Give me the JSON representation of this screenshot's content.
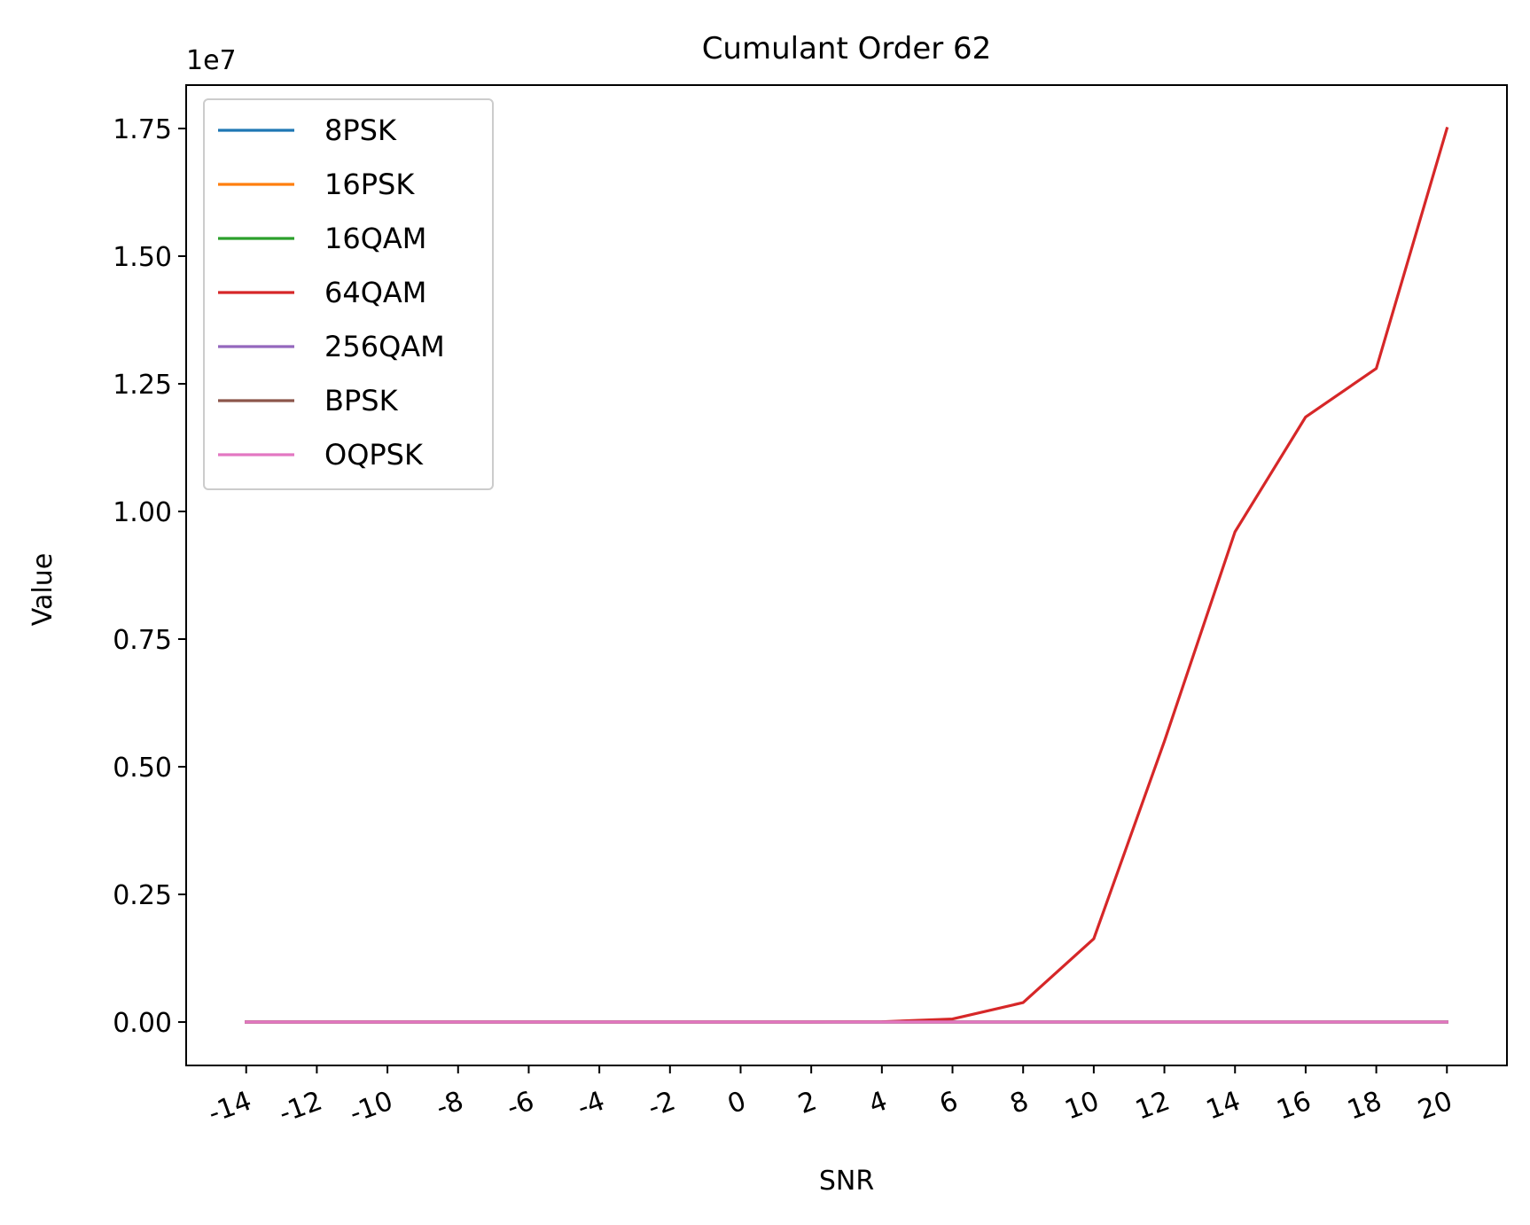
{
  "chart_data": {
    "type": "line",
    "title": "Cumulant Order 62",
    "xlabel": "SNR",
    "ylabel": "Value",
    "y_offset_text": "1e7",
    "x": [
      -14,
      -12,
      -10,
      -8,
      -6,
      -4,
      -2,
      0,
      2,
      4,
      6,
      8,
      10,
      12,
      14,
      16,
      18,
      20
    ],
    "x_tick_labels": [
      "-14",
      "-12",
      "-10",
      "-8",
      "-6",
      "-4",
      "-2",
      "0",
      "2",
      "4",
      "6",
      "8",
      "10",
      "12",
      "14",
      "16",
      "18",
      "20"
    ],
    "y_ticks": [
      0,
      2500000,
      5000000,
      7500000,
      10000000,
      12500000,
      15000000,
      17500000
    ],
    "y_tick_labels": [
      "0.00",
      "0.25",
      "0.50",
      "0.75",
      "1.00",
      "1.25",
      "1.50",
      "1.75"
    ],
    "xlim": [
      -15.7,
      21.7
    ],
    "ylim": [
      -850000,
      18350000
    ],
    "grid": false,
    "legend_position": "upper-left",
    "series": [
      {
        "name": "8PSK",
        "color": "#1f77b4",
        "values": [
          0,
          0,
          0,
          0,
          0,
          0,
          0,
          0,
          0,
          0,
          0,
          0,
          0,
          0,
          0,
          0,
          0,
          0
        ]
      },
      {
        "name": "16PSK",
        "color": "#ff7f0e",
        "values": [
          0,
          0,
          0,
          0,
          0,
          0,
          0,
          0,
          0,
          0,
          0,
          0,
          0,
          0,
          0,
          0,
          0,
          0
        ]
      },
      {
        "name": "16QAM",
        "color": "#2ca02c",
        "values": [
          0,
          0,
          0,
          0,
          0,
          0,
          0,
          0,
          0,
          0,
          0,
          0,
          0,
          0,
          0,
          0,
          0,
          0
        ]
      },
      {
        "name": "64QAM",
        "color": "#d62728",
        "values": [
          0,
          0,
          0,
          0,
          0,
          0,
          0,
          0,
          0,
          5000,
          60000,
          380000,
          1630000,
          5500000,
          9600000,
          11850000,
          12800000,
          17500000
        ]
      },
      {
        "name": "256QAM",
        "color": "#9467bd",
        "values": [
          0,
          0,
          0,
          0,
          0,
          0,
          0,
          0,
          0,
          0,
          0,
          0,
          0,
          0,
          0,
          0,
          0,
          0
        ]
      },
      {
        "name": "BPSK",
        "color": "#8c564b",
        "values": [
          0,
          0,
          0,
          0,
          0,
          0,
          0,
          0,
          0,
          0,
          0,
          0,
          0,
          0,
          0,
          0,
          0,
          0
        ]
      },
      {
        "name": "OQPSK",
        "color": "#e377c2",
        "values": [
          0,
          0,
          0,
          0,
          0,
          0,
          0,
          0,
          0,
          0,
          0,
          0,
          0,
          0,
          0,
          0,
          0,
          0
        ]
      }
    ]
  }
}
